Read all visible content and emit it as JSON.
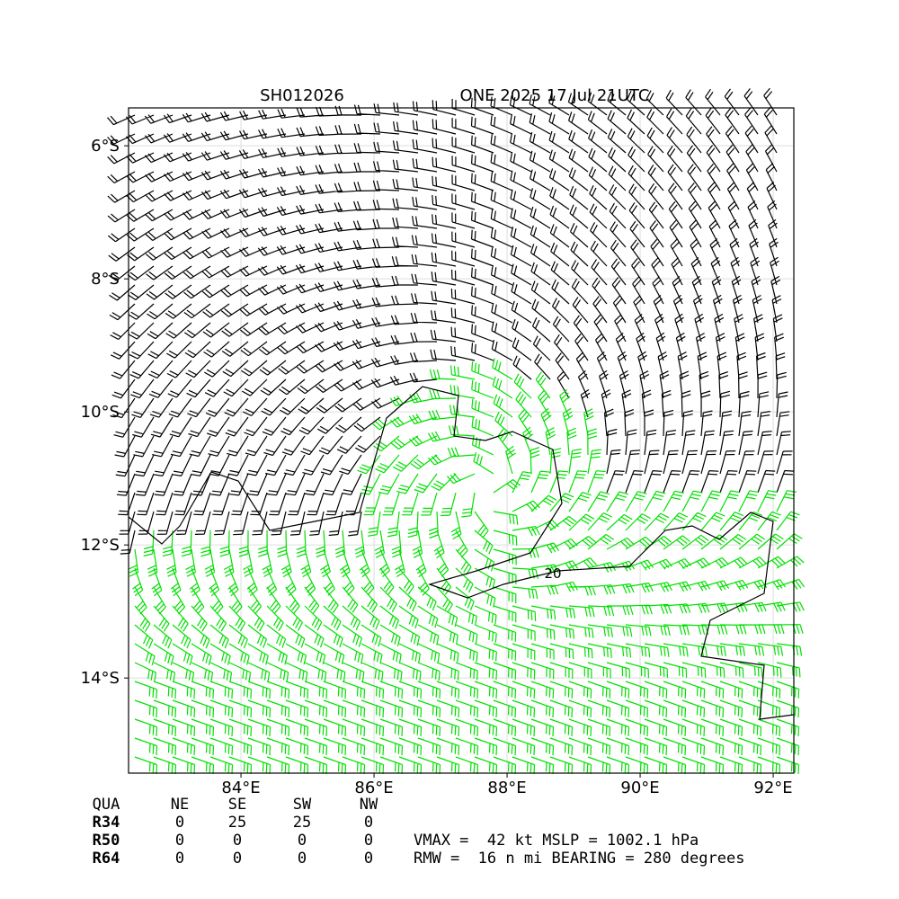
{
  "title_left": "SH012026",
  "title_right": "ONE 2025 17 Jul 21UTC",
  "map": {
    "xlim": [
      82.31,
      92.31
    ],
    "ylim": [
      -15.43,
      -5.43
    ],
    "xticks": [
      {
        "value": 84,
        "label": "84°E"
      },
      {
        "value": 86,
        "label": "86°E"
      },
      {
        "value": 88,
        "label": "88°E"
      },
      {
        "value": 90,
        "label": "90°E"
      },
      {
        "value": 92,
        "label": "92°E"
      }
    ],
    "yticks": [
      {
        "value": -6,
        "label": "6°S"
      },
      {
        "value": -8,
        "label": "8°S"
      },
      {
        "value": -10,
        "label": "10°S"
      },
      {
        "value": -12,
        "label": "12°S"
      },
      {
        "value": -14,
        "label": "14°S"
      }
    ],
    "contour_label": "20"
  },
  "table": {
    "header": [
      "QUA",
      "NE",
      "SE",
      "SW",
      "NW"
    ],
    "rows": [
      [
        "R34",
        0,
        25,
        25,
        0
      ],
      [
        "R50",
        0,
        0,
        0,
        0
      ],
      [
        "R64",
        0,
        0,
        0,
        0
      ]
    ]
  },
  "stats": [
    "VMAX =  42 kt MSLP = 1002.1 hPa",
    "RMW =  16 n mi BEARING = 280 degrees"
  ]
}
